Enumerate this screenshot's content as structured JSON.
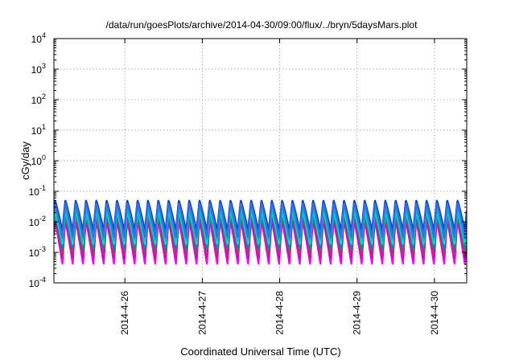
{
  "chart_data": {
    "type": "line",
    "title": "/data/run/goesPlots/archive/2014-04-30/09:00/flux/../bryn/5daysMars.plot",
    "xlabel": "Coordinated Universal Time (UTC)",
    "ylabel": "cGy/day",
    "yscale": "log",
    "ylim": [
      0.0001,
      10000
    ],
    "xlim": [
      "2014-04-25T02:00",
      "2014-04-30T10:00"
    ],
    "y_ticks": [
      {
        "base": "10",
        "exp": "-4"
      },
      {
        "base": "10",
        "exp": "-3"
      },
      {
        "base": "10",
        "exp": "-2"
      },
      {
        "base": "10",
        "exp": "-1"
      },
      {
        "base": "10",
        "exp": "0"
      },
      {
        "base": "10",
        "exp": "1"
      },
      {
        "base": "10",
        "exp": "2"
      },
      {
        "base": "10",
        "exp": "3"
      },
      {
        "base": "10",
        "exp": "4"
      }
    ],
    "x_ticks": [
      {
        "label": "2014-4-26",
        "date": "2014-04-26T00:00"
      },
      {
        "label": "2014-4-27",
        "date": "2014-04-27T00:00"
      },
      {
        "label": "2014-4-28",
        "date": "2014-04-28T00:00"
      },
      {
        "label": "2014-4-29",
        "date": "2014-04-29T00:00"
      },
      {
        "label": "2014-4-30",
        "date": "2014-04-30T00:00"
      }
    ],
    "grid": true,
    "legend": "none",
    "oscillation": {
      "cycles_per_day": 7.5,
      "first_peak": "2014-04-25T02:20"
    },
    "series": [
      {
        "color": "#ff00ff",
        "peak": 0.01,
        "trough": 0.0004
      },
      {
        "color": "#d400d4",
        "peak": 0.012,
        "trough": 0.0006
      },
      {
        "color": "#c0305a",
        "peak": 0.014,
        "trough": 0.0008
      },
      {
        "color": "#009090",
        "peak": 0.018,
        "trough": 0.0012
      },
      {
        "color": "#00e0e0",
        "peak": 0.022,
        "trough": 0.0018
      },
      {
        "color": "#00c0c0",
        "peak": 0.026,
        "trough": 0.0024
      },
      {
        "color": "#c00000",
        "peak": 0.045,
        "trough": 0.004
      },
      {
        "color": "#1040d0",
        "peak": 0.05,
        "trough": 0.005
      },
      {
        "color": "#3070e8",
        "peak": 0.04,
        "trough": 0.003
      }
    ]
  }
}
